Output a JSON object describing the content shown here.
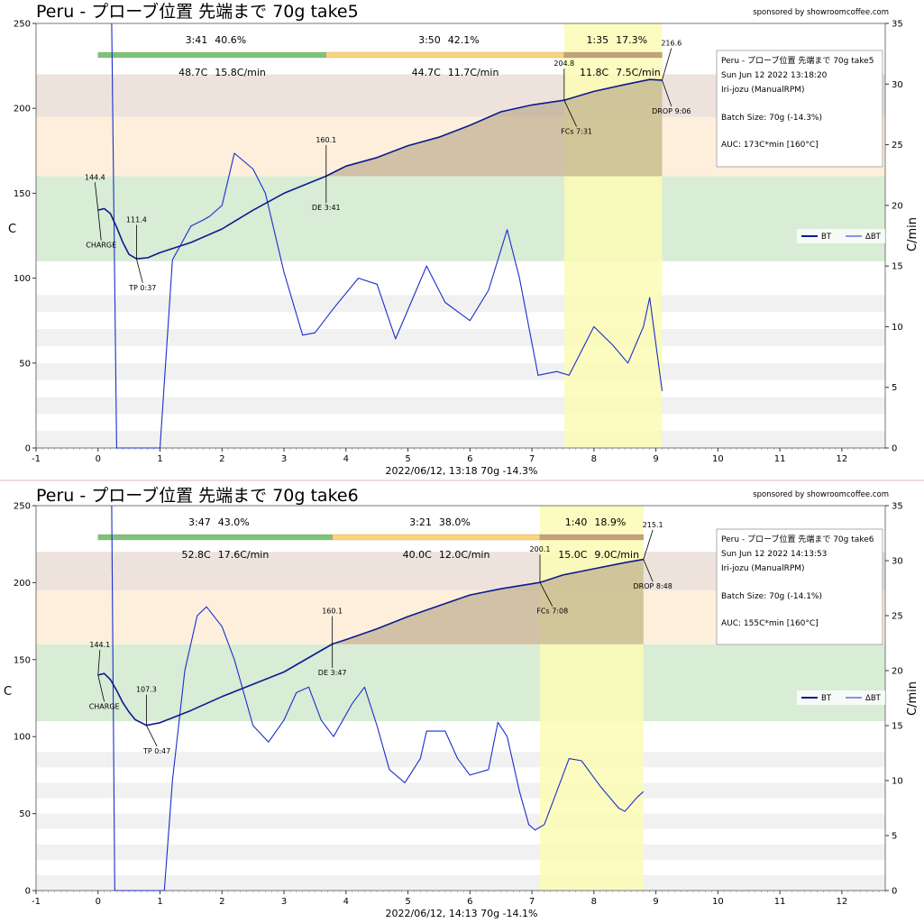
{
  "sponsor": "sponsored by showroomcoffee.com",
  "colors": {
    "bt": "#0d1a8c",
    "ror": "#1a2ecc",
    "phase_green": "#7cc47c",
    "phase_yellow": "#fcd37a",
    "phase_brown": "#c2a27a",
    "band_brown": "#ede3dc",
    "band_orange": "#fdefdc",
    "band_green": "#d8ecd6",
    "first_crack_zone": "#fbfbb5",
    "auc_fill": "#b4a283"
  },
  "chart_data": [
    {
      "type": "line",
      "title": "Peru - プローブ位置 先端まで 70g take5",
      "ylabel": "C",
      "y2label": "C/min",
      "xlabel": "2022/06/12, 13:18   70g   -14.3%",
      "xlim": [
        -1,
        12.7
      ],
      "ylim": [
        0,
        250
      ],
      "y2lim": [
        0,
        35
      ],
      "xticks": [
        "-1",
        "0",
        "1",
        "2",
        "3",
        "4",
        "5",
        "6",
        "7",
        "8",
        "9",
        "10",
        "11",
        "12"
      ],
      "yticks": [
        "0",
        "50",
        "100",
        "150",
        "200",
        "250"
      ],
      "y2ticks": [
        "0",
        "5",
        "10",
        "15",
        "20",
        "25",
        "30",
        "35"
      ],
      "legend": [
        "BT",
        "ΔBT"
      ],
      "phases": [
        {
          "time": "3:41",
          "pct": "40.6%",
          "delta": "48.7C",
          "ror": "15.8C/min",
          "start": 0,
          "end": 3.68
        },
        {
          "time": "3:50",
          "pct": "42.1%",
          "delta": "44.7C",
          "ror": "11.7C/min",
          "start": 3.68,
          "end": 7.52
        },
        {
          "time": "1:35",
          "pct": "17.3%",
          "delta": "11.8C",
          "ror": "7.5C/min",
          "start": 7.52,
          "end": 9.1
        }
      ],
      "first_crack_zone": [
        7.52,
        9.1
      ],
      "auc_base": 160,
      "annotations": [
        {
          "label": "CHARGE",
          "value": "144.4",
          "x": 0,
          "y": 140,
          "vx": -0.05,
          "vy": 158,
          "lx": 0.05,
          "ly": 118
        },
        {
          "label": "TP 0:37",
          "value": "111.4",
          "x": 0.62,
          "y": 111.4,
          "vx": 0.62,
          "vy": 133,
          "lx": 0.72,
          "ly": 93
        },
        {
          "label": "DE 3:41",
          "value": "160.1",
          "x": 3.68,
          "y": 160.1,
          "vx": 3.68,
          "vy": 180,
          "lx": 3.68,
          "ly": 140
        },
        {
          "label": "FCs 7:31",
          "value": "204.8",
          "x": 7.52,
          "y": 204.8,
          "vx": 7.52,
          "vy": 225,
          "lx": 7.72,
          "ly": 185
        },
        {
          "label": "DROP 9:06",
          "value": "216.6",
          "x": 9.1,
          "y": 216.6,
          "vx": 9.25,
          "vy": 237,
          "lx": 9.25,
          "ly": 197
        }
      ],
      "bt": [
        [
          0,
          140
        ],
        [
          0.1,
          141
        ],
        [
          0.2,
          138
        ],
        [
          0.3,
          130
        ],
        [
          0.4,
          121
        ],
        [
          0.5,
          114
        ],
        [
          0.62,
          111.4
        ],
        [
          0.8,
          112
        ],
        [
          1,
          115
        ],
        [
          1.5,
          121
        ],
        [
          2,
          129
        ],
        [
          2.5,
          140
        ],
        [
          3,
          150
        ],
        [
          3.68,
          160.1
        ],
        [
          4,
          166
        ],
        [
          4.5,
          171
        ],
        [
          5,
          178
        ],
        [
          5.5,
          183
        ],
        [
          6,
          190
        ],
        [
          6.5,
          198
        ],
        [
          7,
          202
        ],
        [
          7.52,
          204.8
        ],
        [
          8,
          210
        ],
        [
          8.5,
          214
        ],
        [
          8.9,
          217
        ],
        [
          9.1,
          216.6
        ]
      ],
      "ror": [
        [
          0.22,
          35
        ],
        [
          0.3,
          0
        ],
        [
          1,
          0
        ],
        [
          1.2,
          15.5
        ],
        [
          1.5,
          18.3
        ],
        [
          1.7,
          18.8
        ],
        [
          1.8,
          19.1
        ],
        [
          2,
          20
        ],
        [
          2.2,
          24.3
        ],
        [
          2.5,
          23
        ],
        [
          2.7,
          21
        ],
        [
          3,
          14.5
        ],
        [
          3.3,
          9.3
        ],
        [
          3.5,
          9.5
        ],
        [
          3.8,
          11.5
        ],
        [
          4.2,
          14
        ],
        [
          4.5,
          13.5
        ],
        [
          4.8,
          9
        ],
        [
          5.3,
          15
        ],
        [
          5.6,
          12
        ],
        [
          6,
          10.5
        ],
        [
          6.3,
          13
        ],
        [
          6.6,
          18
        ],
        [
          6.8,
          14
        ],
        [
          7.1,
          6
        ],
        [
          7.4,
          6.3
        ],
        [
          7.6,
          6
        ],
        [
          8,
          10
        ],
        [
          8.3,
          8.5
        ],
        [
          8.55,
          7
        ],
        [
          8.8,
          10
        ],
        [
          8.9,
          12.4
        ],
        [
          9.1,
          4.7
        ]
      ],
      "info": {
        "title": "Peru - プローブ位置 先端まで 70g take5",
        "date": "Sun Jun 12 2022 13:18:20",
        "machine": "Iri-jozu (ManualRPM)",
        "batch": "Batch Size: 70g (-14.3%)",
        "auc": "AUC: 173C*min [160°C]"
      }
    },
    {
      "type": "line",
      "title": "Peru - プローブ位置 先端まで 70g take6",
      "ylabel": "C",
      "y2label": "C/min",
      "xlabel": "2022/06/12, 14:13   70g   -14.1%",
      "xlim": [
        -1,
        12.7
      ],
      "ylim": [
        0,
        250
      ],
      "y2lim": [
        0,
        35
      ],
      "xticks": [
        "-1",
        "0",
        "1",
        "2",
        "3",
        "4",
        "5",
        "6",
        "7",
        "8",
        "9",
        "10",
        "11",
        "12"
      ],
      "yticks": [
        "0",
        "50",
        "100",
        "150",
        "200",
        "250"
      ],
      "y2ticks": [
        "0",
        "5",
        "10",
        "15",
        "20",
        "25",
        "30",
        "35"
      ],
      "legend": [
        "BT",
        "ΔBT"
      ],
      "phases": [
        {
          "time": "3:47",
          "pct": "43.0%",
          "delta": "52.8C",
          "ror": "17.6C/min",
          "start": 0,
          "end": 3.78
        },
        {
          "time": "3:21",
          "pct": "38.0%",
          "delta": "40.0C",
          "ror": "12.0C/min",
          "start": 3.78,
          "end": 7.13
        },
        {
          "time": "1:40",
          "pct": "18.9%",
          "delta": "15.0C",
          "ror": "9.0C/min",
          "start": 7.13,
          "end": 8.8
        }
      ],
      "first_crack_zone": [
        7.13,
        8.8
      ],
      "auc_base": 160,
      "annotations": [
        {
          "label": "CHARGE",
          "value": "144.1",
          "x": 0,
          "y": 140,
          "vx": 0.03,
          "vy": 158,
          "lx": 0.1,
          "ly": 118
        },
        {
          "label": "TP 0:47",
          "value": "107.3",
          "x": 0.78,
          "y": 107.3,
          "vx": 0.78,
          "vy": 129,
          "lx": 0.95,
          "ly": 89
        },
        {
          "label": "DE 3:47",
          "value": "160.1",
          "x": 3.78,
          "y": 160.1,
          "vx": 3.78,
          "vy": 180,
          "lx": 3.78,
          "ly": 140
        },
        {
          "label": "FCs 7:08",
          "value": "200.1",
          "x": 7.13,
          "y": 200.1,
          "vx": 7.13,
          "vy": 220,
          "lx": 7.33,
          "ly": 180
        },
        {
          "label": "DROP 8:48",
          "value": "215.1",
          "x": 8.8,
          "y": 215.1,
          "vx": 8.95,
          "vy": 236,
          "lx": 8.95,
          "ly": 196
        }
      ],
      "bt": [
        [
          0,
          140
        ],
        [
          0.1,
          141
        ],
        [
          0.2,
          137
        ],
        [
          0.3,
          130
        ],
        [
          0.4,
          122
        ],
        [
          0.5,
          116
        ],
        [
          0.6,
          111
        ],
        [
          0.78,
          107.3
        ],
        [
          1,
          109
        ],
        [
          1.5,
          117
        ],
        [
          2,
          126
        ],
        [
          2.5,
          134
        ],
        [
          3,
          142
        ],
        [
          3.78,
          160.1
        ],
        [
          4,
          163
        ],
        [
          4.5,
          170
        ],
        [
          5,
          178
        ],
        [
          5.5,
          185
        ],
        [
          6,
          192
        ],
        [
          6.5,
          196
        ],
        [
          7.13,
          200.1
        ],
        [
          7.5,
          205
        ],
        [
          8,
          209
        ],
        [
          8.5,
          213
        ],
        [
          8.8,
          215.1
        ]
      ],
      "ror": [
        [
          0.22,
          35
        ],
        [
          0.27,
          0
        ],
        [
          1.07,
          0
        ],
        [
          1.2,
          10
        ],
        [
          1.4,
          20
        ],
        [
          1.6,
          25
        ],
        [
          1.75,
          25.8
        ],
        [
          2,
          24
        ],
        [
          2.2,
          21
        ],
        [
          2.5,
          15
        ],
        [
          2.75,
          13.5
        ],
        [
          3,
          15.5
        ],
        [
          3.2,
          18
        ],
        [
          3.4,
          18.5
        ],
        [
          3.6,
          15.5
        ],
        [
          3.8,
          14
        ],
        [
          4.1,
          17
        ],
        [
          4.3,
          18.5
        ],
        [
          4.5,
          15
        ],
        [
          4.7,
          11
        ],
        [
          4.95,
          9.8
        ],
        [
          5.2,
          12
        ],
        [
          5.3,
          14.5
        ],
        [
          5.6,
          14.5
        ],
        [
          5.8,
          12
        ],
        [
          6,
          10.5
        ],
        [
          6.3,
          11
        ],
        [
          6.45,
          15.3
        ],
        [
          6.6,
          14
        ],
        [
          6.8,
          9
        ],
        [
          6.95,
          6
        ],
        [
          7.05,
          5.5
        ],
        [
          7.2,
          6
        ],
        [
          7.4,
          9
        ],
        [
          7.6,
          12
        ],
        [
          7.8,
          11.8
        ],
        [
          8.1,
          9.5
        ],
        [
          8.4,
          7.5
        ],
        [
          8.5,
          7.2
        ],
        [
          8.7,
          8.5
        ],
        [
          8.8,
          9
        ]
      ],
      "info": {
        "title": "Peru - プローブ位置 先端まで 70g take6",
        "date": "Sun Jun 12 2022 14:13:53",
        "machine": "Iri-jozu (ManualRPM)",
        "batch": "Batch Size: 70g (-14.1%)",
        "auc": "AUC: 155C*min [160°C]"
      }
    }
  ]
}
